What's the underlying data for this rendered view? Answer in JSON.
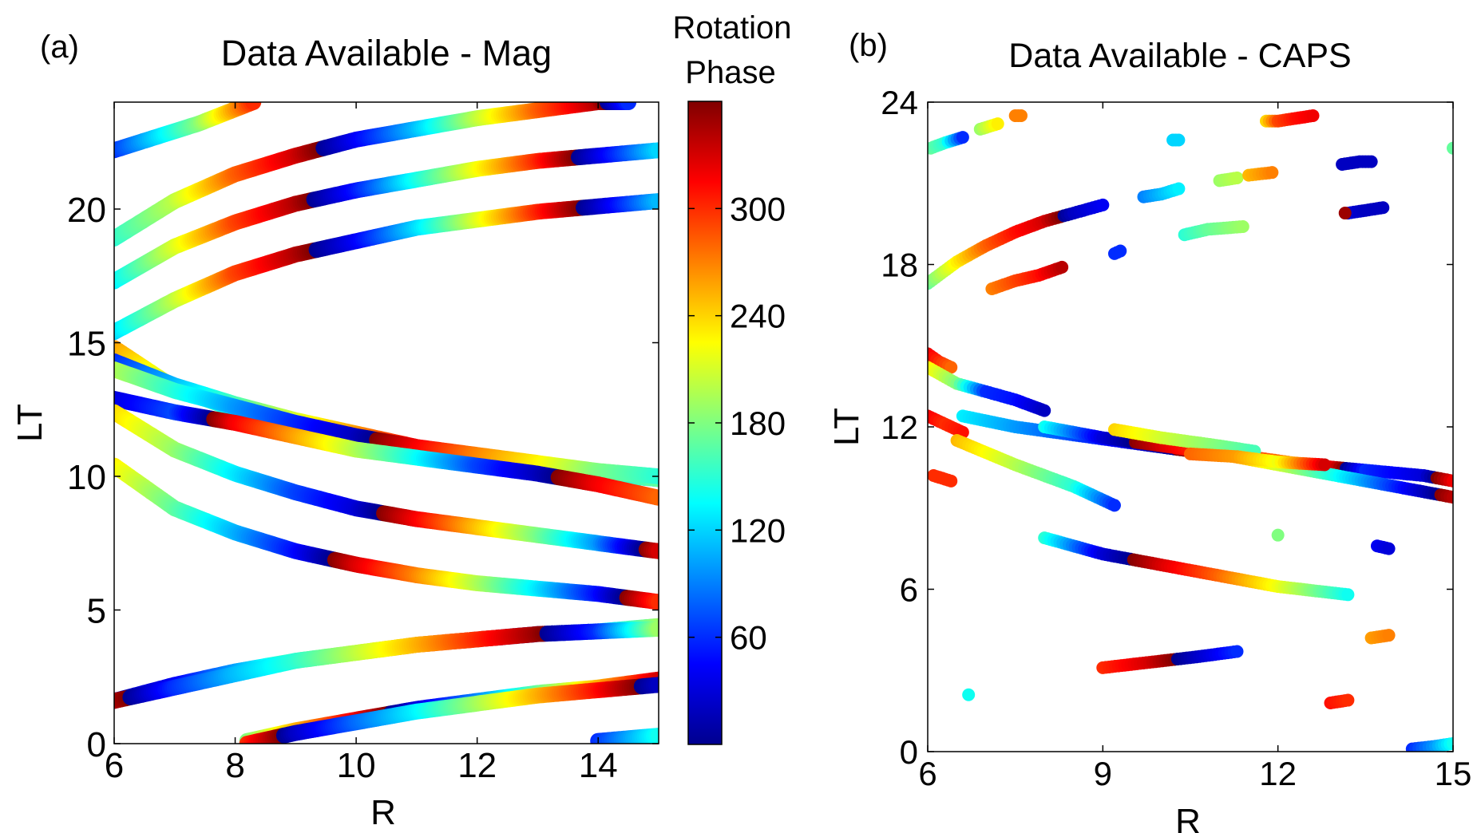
{
  "colors": {
    "colormap": [
      "#00008f",
      "#0000ff",
      "#0080ff",
      "#00ffff",
      "#80ff80",
      "#ffff00",
      "#ff8000",
      "#ff0000",
      "#800000"
    ],
    "axis": "#000000",
    "background": "#ffffff"
  },
  "chart_data": [
    {
      "type": "scatter",
      "panel_label": "(a)",
      "title": "Data Available - Mag",
      "xlabel": "R",
      "ylabel": "LT",
      "xlim": [
        6,
        15
      ],
      "ylim": [
        0,
        24
      ],
      "xticks": [
        "6",
        "8",
        "10",
        "12",
        "14"
      ],
      "yticks": [
        "0",
        "5",
        "10",
        "15",
        "20"
      ],
      "colorbar": {
        "title_line1": "Rotation",
        "title_line2": "Phase",
        "range": [
          0,
          360
        ],
        "ticks": [
          "60",
          "120",
          "180",
          "240",
          "300"
        ]
      },
      "series": [
        {
          "x": [
            6,
            6.7,
            7.4,
            8.3
          ],
          "y": [
            22.2,
            22.7,
            23.2,
            24.0
          ],
          "phase": [
            60,
            120,
            180,
            300
          ]
        },
        {
          "x": [
            6,
            7,
            8,
            9,
            10,
            11,
            12,
            13,
            14,
            14.5
          ],
          "y": [
            18.9,
            20.3,
            21.3,
            22.0,
            22.6,
            23.0,
            23.4,
            23.7,
            24.0,
            24.0
          ],
          "phase": [
            150,
            200,
            280,
            330,
            40,
            110,
            200,
            280,
            340,
            60
          ]
        },
        {
          "x": [
            6,
            7,
            8,
            9,
            10,
            11,
            12,
            13,
            14,
            15
          ],
          "y": [
            17.3,
            18.6,
            19.5,
            20.2,
            20.7,
            21.1,
            21.5,
            21.8,
            22.0,
            22.2
          ],
          "phase": [
            130,
            210,
            290,
            340,
            50,
            140,
            220,
            300,
            30,
            120
          ]
        },
        {
          "x": [
            6,
            7,
            8,
            9,
            10,
            11,
            12,
            13,
            14,
            15
          ],
          "y": [
            15.4,
            16.6,
            17.6,
            18.3,
            18.8,
            19.3,
            19.6,
            19.9,
            20.1,
            20.3
          ],
          "phase": [
            120,
            200,
            290,
            340,
            40,
            120,
            210,
            300,
            20,
            110
          ]
        },
        {
          "x": [
            6,
            7,
            8,
            9,
            10,
            11,
            12,
            13,
            14,
            15
          ],
          "y": [
            14.8,
            13.3,
            12.5,
            11.8,
            11.3,
            11.0,
            10.7,
            10.4,
            10.1,
            9.9
          ],
          "phase": [
            260,
            200,
            130,
            60,
            20,
            320,
            250,
            180,
            120,
            80
          ]
        },
        {
          "x": [
            6,
            7,
            8,
            9,
            10,
            11,
            12,
            13,
            14,
            15
          ],
          "y": [
            14.3,
            13.4,
            12.7,
            12.1,
            11.6,
            11.1,
            10.7,
            10.4,
            10.1,
            9.9
          ],
          "phase": [
            60,
            110,
            160,
            210,
            260,
            320,
            20,
            80,
            130,
            170
          ]
        },
        {
          "x": [
            6,
            7,
            8,
            9,
            10,
            11,
            12,
            13,
            14,
            15
          ],
          "y": [
            14.0,
            13.2,
            12.6,
            12.0,
            11.5,
            11.1,
            10.8,
            10.5,
            10.2,
            10.0
          ],
          "phase": [
            200,
            150,
            100,
            60,
            20,
            320,
            270,
            230,
            180,
            150
          ]
        },
        {
          "x": [
            6,
            7,
            8,
            9,
            10,
            11,
            12,
            13,
            14,
            15
          ],
          "y": [
            12.9,
            12.4,
            12.0,
            11.5,
            11.0,
            10.7,
            10.4,
            10.1,
            9.7,
            9.2
          ],
          "phase": [
            30,
            70,
            320,
            260,
            200,
            140,
            70,
            20,
            320,
            280
          ]
        },
        {
          "x": [
            6,
            7,
            8,
            9,
            10,
            11,
            12,
            13,
            14,
            15
          ],
          "y": [
            12.4,
            11.0,
            10.1,
            9.4,
            8.8,
            8.4,
            8.1,
            7.8,
            7.5,
            7.2
          ],
          "phase": [
            240,
            190,
            130,
            70,
            30,
            320,
            250,
            180,
            100,
            330
          ]
        },
        {
          "x": [
            6,
            7,
            8,
            9,
            10,
            11,
            12,
            13,
            14,
            15
          ],
          "y": [
            10.4,
            8.8,
            7.9,
            7.2,
            6.7,
            6.3,
            6.0,
            5.8,
            5.6,
            5.3
          ],
          "phase": [
            230,
            170,
            110,
            50,
            330,
            270,
            200,
            130,
            50,
            300
          ]
        },
        {
          "x": [
            6,
            7,
            8,
            9,
            10,
            11,
            12,
            13,
            14,
            15
          ],
          "y": [
            1.6,
            2.2,
            2.7,
            3.1,
            3.4,
            3.7,
            3.9,
            4.1,
            4.2,
            4.4
          ],
          "phase": [
            20,
            40,
            100,
            170,
            230,
            290,
            340,
            40,
            120,
            190
          ]
        },
        {
          "x": [
            6,
            7,
            8,
            9,
            10,
            11,
            12,
            13,
            14,
            15
          ],
          "y": [
            1.6,
            2.1,
            2.6,
            3.1,
            3.4,
            3.7,
            3.9,
            4.1,
            4.2,
            4.3
          ],
          "phase": [
            340,
            60,
            110,
            150,
            200,
            250,
            300,
            350,
            60,
            190
          ]
        },
        {
          "x": [
            8.2,
            9,
            10,
            11,
            12,
            13,
            14,
            15
          ],
          "y": [
            0.1,
            0.5,
            0.9,
            1.3,
            1.6,
            1.9,
            2.1,
            2.4
          ],
          "phase": [
            180,
            250,
            320,
            30,
            90,
            170,
            250,
            330
          ]
        },
        {
          "x": [
            8.2,
            9,
            10,
            11,
            12,
            13,
            14,
            15
          ],
          "y": [
            0.0,
            0.4,
            0.8,
            1.2,
            1.5,
            1.8,
            2.0,
            2.2
          ],
          "phase": [
            300,
            20,
            80,
            130,
            190,
            250,
            310,
            20
          ]
        },
        {
          "x": [
            14,
            14.5,
            15
          ],
          "y": [
            0.1,
            0.2,
            0.3
          ],
          "phase": [
            60,
            100,
            140
          ]
        }
      ]
    },
    {
      "type": "scatter",
      "panel_label": "(b)",
      "title": "Data Available - CAPS",
      "xlabel": "R",
      "ylabel": "LT",
      "xlim": [
        6,
        15
      ],
      "ylim": [
        0,
        24
      ],
      "xticks": [
        "6",
        "9",
        "12",
        "15"
      ],
      "yticks": [
        "0",
        "6",
        "12",
        "18",
        "24"
      ],
      "series": [
        {
          "x": [
            6.05,
            6.3,
            6.6
          ],
          "y": [
            22.3,
            22.5,
            22.7
          ],
          "phase": [
            170,
            150,
            60
          ]
        },
        {
          "x": [
            6.9,
            7.2
          ],
          "y": [
            23.0,
            23.2
          ],
          "phase": [
            190,
            230
          ]
        },
        {
          "x": [
            7.5,
            7.6
          ],
          "y": [
            23.5,
            23.5
          ],
          "phase": [
            270,
            270
          ]
        },
        {
          "x": [
            10.2,
            10.3
          ],
          "y": [
            22.6,
            22.6
          ],
          "phase": [
            120,
            120
          ]
        },
        {
          "x": [
            11.8,
            12.0,
            12.3,
            12.6
          ],
          "y": [
            23.3,
            23.3,
            23.4,
            23.5
          ],
          "phase": [
            240,
            290,
            310,
            320
          ]
        },
        {
          "x": [
            13.1,
            13.4,
            13.6
          ],
          "y": [
            21.7,
            21.8,
            21.8
          ],
          "phase": [
            20,
            20,
            20
          ]
        },
        {
          "x": [
            13.2,
            13.5,
            13.8
          ],
          "y": [
            19.9,
            20.0,
            20.1
          ],
          "phase": [
            30,
            20,
            20
          ]
        },
        {
          "x": [
            13.15
          ],
          "y": [
            19.9
          ],
          "phase": [
            350
          ]
        },
        {
          "x": [
            11.0,
            11.3
          ],
          "y": [
            21.1,
            21.2
          ],
          "phase": [
            190,
            200
          ]
        },
        {
          "x": [
            11.5,
            11.9
          ],
          "y": [
            21.3,
            21.4
          ],
          "phase": [
            250,
            270
          ]
        },
        {
          "x": [
            9.7,
            10.0,
            10.3
          ],
          "y": [
            20.5,
            20.6,
            20.8
          ],
          "phase": [
            90,
            110,
            130
          ]
        },
        {
          "x": [
            10.4,
            10.8,
            11.4
          ],
          "y": [
            19.1,
            19.3,
            19.4
          ],
          "phase": [
            150,
            170,
            190
          ]
        },
        {
          "x": [
            9.2,
            9.3
          ],
          "y": [
            18.4,
            18.5
          ],
          "phase": [
            60,
            60
          ]
        },
        {
          "x": [
            6.0,
            6.5,
            7.0,
            7.5,
            8.0,
            8.5,
            9.0
          ],
          "y": [
            17.3,
            18.1,
            18.7,
            19.2,
            19.6,
            19.9,
            20.2
          ],
          "phase": [
            170,
            230,
            280,
            310,
            330,
            20,
            40
          ]
        },
        {
          "x": [
            7.1,
            7.5,
            7.9,
            8.3
          ],
          "y": [
            17.1,
            17.4,
            17.6,
            17.9
          ],
          "phase": [
            270,
            290,
            310,
            340
          ]
        },
        {
          "x": [
            6.0,
            6.2,
            6.4
          ],
          "y": [
            14.7,
            14.4,
            14.2
          ],
          "phase": [
            320,
            300,
            280
          ]
        },
        {
          "x": [
            6.0,
            6.5,
            7.0,
            7.5,
            8.0
          ],
          "y": [
            14.2,
            13.6,
            13.3,
            13.0,
            12.6
          ],
          "phase": [
            230,
            180,
            60,
            50,
            20
          ]
        },
        {
          "x": [
            6.0,
            6.3,
            6.6
          ],
          "y": [
            12.4,
            12.1,
            11.8
          ],
          "phase": [
            320,
            300,
            310
          ]
        },
        {
          "x": [
            6.1,
            6.4
          ],
          "y": [
            10.2,
            10.0
          ],
          "phase": [
            300,
            300
          ]
        },
        {
          "x": [
            6.5,
            7.5,
            8.5,
            9.2
          ],
          "y": [
            11.5,
            10.6,
            9.8,
            9.1
          ],
          "phase": [
            250,
            200,
            150,
            60
          ]
        },
        {
          "x": [
            6.6,
            7.5,
            8.5,
            9.5,
            10.5,
            11.5,
            12.5,
            13.5,
            14.5,
            15.0
          ],
          "y": [
            12.4,
            12.0,
            11.7,
            11.4,
            11.1,
            10.9,
            10.6,
            10.4,
            10.2,
            10.0
          ],
          "phase": [
            130,
            100,
            70,
            30,
            350,
            300,
            250,
            60,
            30,
            320
          ]
        },
        {
          "x": [
            8.0,
            9.0,
            10.0,
            11.0,
            12.0,
            13.0,
            14.0,
            15.0
          ],
          "y": [
            12.0,
            11.6,
            11.3,
            11.0,
            10.6,
            10.2,
            9.8,
            9.4
          ],
          "phase": [
            140,
            30,
            330,
            280,
            210,
            140,
            60,
            340
          ]
        },
        {
          "x": [
            9.2,
            10.0,
            11.0,
            11.6
          ],
          "y": [
            11.9,
            11.6,
            11.3,
            11.1
          ],
          "phase": [
            240,
            210,
            180,
            160
          ]
        },
        {
          "x": [
            10.5,
            11.3,
            12.0,
            12.8
          ],
          "y": [
            11.0,
            10.9,
            10.7,
            10.6
          ],
          "phase": [
            280,
            260,
            220,
            330
          ]
        },
        {
          "x": [
            8.0,
            9.0,
            10.0,
            11.0,
            12.0,
            13.2
          ],
          "y": [
            7.9,
            7.3,
            6.9,
            6.5,
            6.1,
            5.8
          ],
          "phase": [
            150,
            30,
            330,
            280,
            220,
            140
          ]
        },
        {
          "x": [
            12.0
          ],
          "y": [
            8.0
          ],
          "phase": [
            180
          ]
        },
        {
          "x": [
            13.7,
            13.9
          ],
          "y": [
            7.6,
            7.5
          ],
          "phase": [
            40,
            30
          ]
        },
        {
          "x": [
            13.6,
            13.9
          ],
          "y": [
            4.2,
            4.3
          ],
          "phase": [
            260,
            270
          ]
        },
        {
          "x": [
            9.0,
            9.8,
            10.6,
            11.3
          ],
          "y": [
            3.1,
            3.3,
            3.5,
            3.7
          ],
          "phase": [
            300,
            330,
            20,
            60
          ]
        },
        {
          "x": [
            12.9,
            13.2
          ],
          "y": [
            1.8,
            1.9
          ],
          "phase": [
            310,
            300
          ]
        },
        {
          "x": [
            6.7
          ],
          "y": [
            2.1
          ],
          "phase": [
            140
          ]
        },
        {
          "x": [
            14.3,
            14.7,
            15.0
          ],
          "y": [
            0.1,
            0.2,
            0.3
          ],
          "phase": [
            60,
            100,
            140
          ]
        },
        {
          "x": [
            15.0
          ],
          "y": [
            22.3
          ],
          "phase": [
            170
          ]
        }
      ]
    }
  ]
}
